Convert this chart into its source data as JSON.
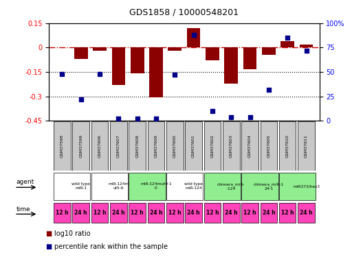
{
  "title": "GDS1858 / 10000548201",
  "samples": [
    "GSM37598",
    "GSM37599",
    "GSM37606",
    "GSM37607",
    "GSM37608",
    "GSM37609",
    "GSM37600",
    "GSM37601",
    "GSM37602",
    "GSM37603",
    "GSM37604",
    "GSM37605",
    "GSM37610",
    "GSM37611"
  ],
  "log10_ratio": [
    0.0,
    -0.07,
    -0.02,
    -0.23,
    -0.16,
    -0.305,
    -0.02,
    0.12,
    -0.08,
    -0.22,
    -0.135,
    -0.045,
    0.04,
    0.02
  ],
  "percentile_rank": [
    48,
    22,
    48,
    2,
    2,
    2,
    47,
    88,
    10,
    4,
    4,
    32,
    85,
    72
  ],
  "ylim_left": [
    -0.45,
    0.15
  ],
  "ylim_right": [
    0,
    100
  ],
  "yticks_left": [
    -0.45,
    -0.3,
    -0.15,
    0.0,
    0.15
  ],
  "yticks_right": [
    0,
    25,
    50,
    75,
    100
  ],
  "bar_color": "#8B0000",
  "scatter_color": "#00008B",
  "dashed_line_color": "#CC0000",
  "agent_groups": [
    {
      "label": "wild type\nmiR-1",
      "start": 0,
      "end": 2,
      "color": "#FFFFFF"
    },
    {
      "label": "miR-124m\nut5-6",
      "start": 2,
      "end": 4,
      "color": "#FFFFFF"
    },
    {
      "label": "miR-124mut9-1\n0",
      "start": 4,
      "end": 6,
      "color": "#90EE90"
    },
    {
      "label": "wild type\nmiR-124",
      "start": 6,
      "end": 8,
      "color": "#FFFFFF"
    },
    {
      "label": "chimera_miR-\n-124",
      "start": 8,
      "end": 10,
      "color": "#90EE90"
    },
    {
      "label": "chimera_miR-1\n24-1",
      "start": 10,
      "end": 12,
      "color": "#90EE90"
    },
    {
      "label": "miR373/hes3",
      "start": 12,
      "end": 14,
      "color": "#90EE90"
    }
  ],
  "time_labels": [
    "12 h",
    "24 h",
    "12 h",
    "24 h",
    "12 h",
    "24 h",
    "12 h",
    "24 h",
    "12 h",
    "24 h",
    "12 h",
    "24 h",
    "12 h",
    "24 h"
  ],
  "time_color": "#FF44BB",
  "sample_color": "#C8C8C8",
  "legend_bar_color": "#8B0000",
  "legend_scatter_color": "#00008B",
  "legend_bar_label": "log10 ratio",
  "legend_scatter_label": "percentile rank within the sample",
  "bg_color": "#FFFFFF"
}
